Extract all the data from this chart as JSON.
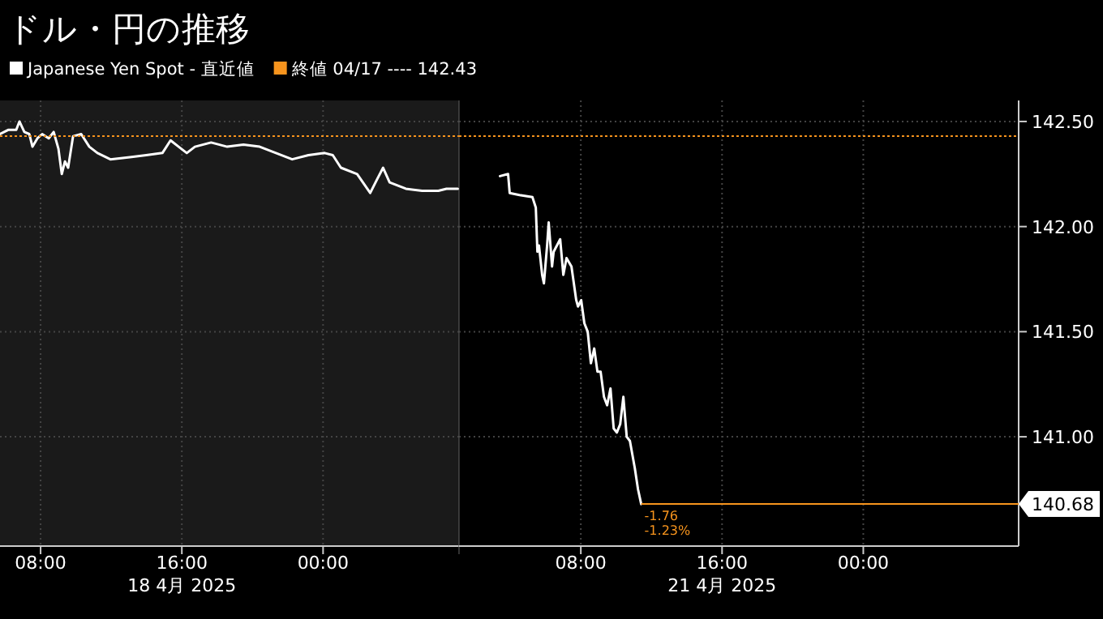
{
  "chart_data": [
    {
      "type": "line",
      "title": "ドル・円の推移",
      "x": [
        5.7,
        6.16,
        6.62,
        6.8,
        7.08,
        7.36,
        7.54,
        7.82,
        8.09,
        8.46,
        8.74,
        9.01,
        9.2,
        9.38,
        9.56,
        9.84,
        10.3,
        10.76,
        11.22,
        11.95,
        13.06,
        13.98,
        14.9,
        15.36,
        15.82,
        16.28,
        16.74,
        17.66,
        18.57,
        19.49,
        20.41,
        21.33,
        22.25,
        23.17,
        24.09,
        24.55,
        25.01,
        25.93,
        26.67,
        27.03,
        27.4,
        27.77,
        28.69,
        29.61,
        30.53,
        30.99,
        31.63
      ],
      "series": [
        {
          "name": "Japanese Yen Spot - 直近値",
          "color": "#ffffff",
          "values": [
            142.44,
            142.46,
            142.46,
            142.5,
            142.45,
            142.44,
            142.38,
            142.42,
            142.44,
            142.42,
            142.45,
            142.37,
            142.25,
            142.31,
            142.28,
            142.43,
            142.44,
            142.38,
            142.35,
            142.32,
            142.33,
            142.34,
            142.35,
            142.41,
            142.38,
            142.35,
            142.38,
            142.4,
            142.38,
            142.39,
            142.38,
            142.35,
            142.32,
            142.34,
            142.35,
            142.34,
            142.28,
            142.25,
            142.16,
            142.22,
            142.28,
            142.21,
            142.18,
            142.17,
            142.17,
            142.18,
            142.18
          ]
        }
      ],
      "xlim": [
        5.7,
        31.7
      ],
      "xticks": [
        {
          "value": 8,
          "label": "08:00"
        },
        {
          "value": 16,
          "label": "16:00"
        },
        {
          "value": 24,
          "label": "00:00"
        }
      ],
      "ylim": [
        140.48,
        142.6
      ],
      "yticks": [
        141,
        141.5,
        142,
        142.5
      ],
      "tick_labels": "x",
      "grid": true,
      "legend": "top left",
      "line_style": "solid",
      "ref_lines": [
        {
          "axis": "y",
          "value": 142.43,
          "label": "終値 04/17 ---- 142.43",
          "color": "#f7941d",
          "line_style": "dotted"
        }
      ],
      "bands": [
        {
          "axis": "x",
          "from": 5.7,
          "to": 31.7,
          "color": "#1a1a1a"
        }
      ],
      "annotations": [
        "18 4月 2025"
      ]
    },
    {
      "type": "line",
      "x": [
        3.42,
        3.88,
        3.97,
        4.53,
        5.26,
        5.45,
        5.54,
        5.63,
        5.81,
        5.91,
        6.09,
        6.18,
        6.37,
        6.46,
        6.83,
        7.01,
        7.19,
        7.47,
        7.74,
        7.84,
        8.02,
        8.2,
        8.39,
        8.57,
        8.76,
        8.94,
        9.12,
        9.31,
        9.49,
        9.68,
        9.86,
        10.04,
        10.23,
        10.41,
        10.6,
        10.78,
        11.06,
        11.24,
        11.42
      ],
      "series": [
        {
          "color": "#ffffff",
          "values": [
            142.24,
            142.25,
            142.16,
            142.15,
            142.14,
            142.09,
            141.88,
            141.91,
            141.77,
            141.73,
            141.91,
            142.02,
            141.81,
            141.88,
            141.94,
            141.77,
            141.85,
            141.81,
            141.65,
            141.62,
            141.65,
            141.54,
            141.5,
            141.35,
            141.42,
            141.31,
            141.31,
            141.19,
            141.15,
            141.23,
            141.04,
            141.02,
            141.06,
            141.19,
            141.0,
            140.98,
            140.85,
            140.75,
            140.68
          ]
        }
      ],
      "xlim": [
        1.1,
        32.8
      ],
      "xticks": [
        {
          "value": 8,
          "label": "08:00"
        },
        {
          "value": 16,
          "label": "16:00"
        },
        {
          "value": 24,
          "label": "00:00"
        }
      ],
      "ylim": [
        140.48,
        142.6
      ],
      "yticks": [
        {
          "value": 141,
          "label": "141.00"
        },
        {
          "value": 141.5,
          "label": "141.50"
        },
        {
          "value": 142,
          "label": "142.00"
        },
        {
          "value": 142.5,
          "label": "142.50"
        }
      ],
      "grid": true,
      "line_style": "solid",
      "ref_lines": [
        {
          "axis": "y",
          "value": 142.43,
          "color": "#f7941d",
          "line_style": "dotted"
        },
        {
          "axis": "y",
          "value": 140.68,
          "label": "140.68",
          "color": "#f7941d",
          "line_style": "solid"
        }
      ],
      "annotations": [
        "21 4月 2025",
        "-1.76",
        "-1.23%"
      ]
    }
  ]
}
